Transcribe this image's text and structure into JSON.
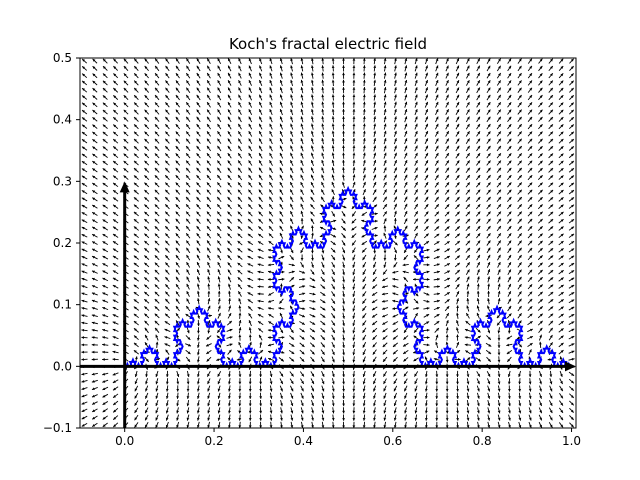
{
  "chart_data": {
    "type": "quiver",
    "title": "Koch's fractal electric field",
    "xlabel": "",
    "ylabel": "",
    "xlim": [
      -0.1,
      1.01
    ],
    "ylim": [
      -0.1,
      0.5
    ],
    "x_ticks": [
      0.0,
      0.2,
      0.4,
      0.6,
      0.8,
      1.0
    ],
    "x_tick_labels": [
      "0.0",
      "0.2",
      "0.4",
      "0.6",
      "0.8",
      "1.0"
    ],
    "y_ticks": [
      -0.1,
      0.0,
      0.1,
      0.2,
      0.3,
      0.4,
      0.5
    ],
    "y_tick_labels": [
      "−0.1",
      "0.0",
      "0.1",
      "0.2",
      "0.3",
      "0.4",
      "0.5"
    ],
    "grid": false,
    "legend": "none",
    "koch_curve": {
      "start": [
        0,
        0
      ],
      "end": [
        1,
        0
      ],
      "orientation": "upward",
      "iterations": 5,
      "color": "#0000ff"
    },
    "axis_arrows": [
      {
        "name": "x-axis",
        "from": [
          -0.1,
          0
        ],
        "to": [
          1.01,
          0
        ],
        "color": "#000000"
      },
      {
        "name": "y-axis",
        "from": [
          0,
          -0.1
        ],
        "to": [
          0,
          0.3
        ],
        "color": "#000000"
      }
    ],
    "field": {
      "color": "#000000",
      "x_range": [
        -0.09,
        1.0
      ],
      "y_range": [
        -0.095,
        0.495
      ],
      "nx": 48,
      "ny": 51
    }
  }
}
